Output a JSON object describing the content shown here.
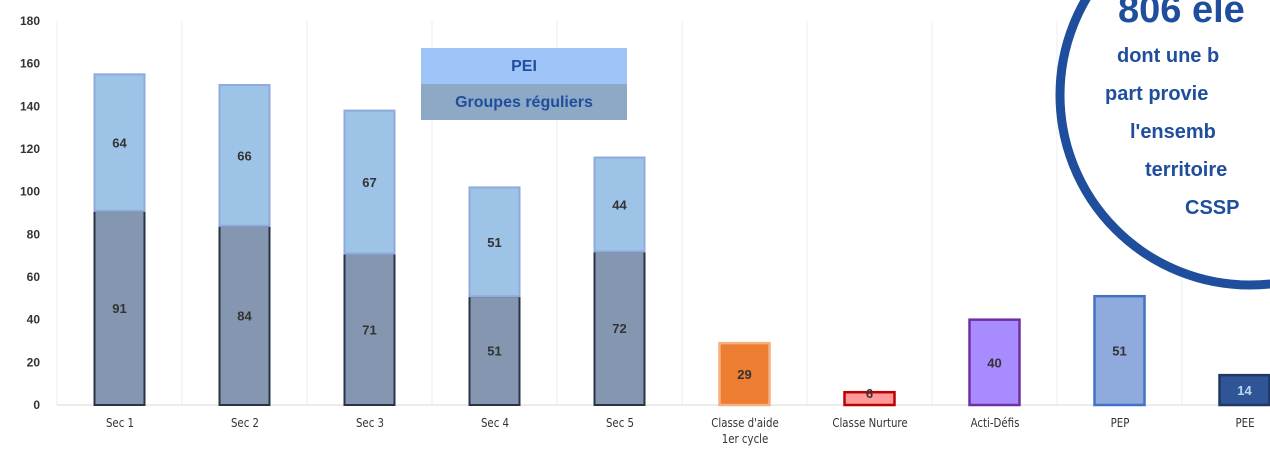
{
  "chart_data": {
    "type": "stacked_bar",
    "categories": [
      "Sec 1",
      "Sec 2",
      "Sec 3",
      "Sec 4",
      "Sec 5",
      "Classe d'aide 1er cycle",
      "Classe Nurture",
      "Acti-Défis",
      "PEP",
      "PEE"
    ],
    "series": [
      {
        "name": "Groupes réguliers",
        "color": "#8496b0",
        "border": "#2a3446",
        "values": [
          91,
          84,
          71,
          51,
          72,
          null,
          null,
          null,
          null,
          null
        ]
      },
      {
        "name": "PEI",
        "color": "#9dc3e6",
        "border": "#8faadc",
        "values": [
          64,
          66,
          67,
          51,
          44,
          null,
          null,
          null,
          null,
          null
        ]
      }
    ],
    "single_bars": {
      "values": [
        null,
        null,
        null,
        null,
        null,
        29,
        6,
        40,
        51,
        14
      ],
      "colors": [
        null,
        null,
        null,
        null,
        null,
        "#ed7d31",
        "#ff9a9a",
        "#a88bff",
        "#8faadc",
        "#2f5597"
      ],
      "borders": [
        null,
        null,
        null,
        null,
        null,
        "#f4b183",
        "#c00000",
        "#7030a0",
        "#4472c4",
        "#1f3864"
      ],
      "label_colors": [
        null,
        null,
        null,
        null,
        null,
        "#333333",
        "#333333",
        "#333333",
        "#333333",
        "#bdd7ee"
      ]
    },
    "ylim": [
      0,
      180
    ],
    "yticks": [
      0,
      20,
      40,
      60,
      80,
      100,
      120,
      140,
      160,
      180
    ],
    "legend_corner": "top-center",
    "callout": {
      "lines": [
        "806 éle",
        "dont une b",
        "part provie",
        "l'ensemb",
        "territoire",
        "CSSP"
      ],
      "color": "#1f4e9c"
    }
  }
}
